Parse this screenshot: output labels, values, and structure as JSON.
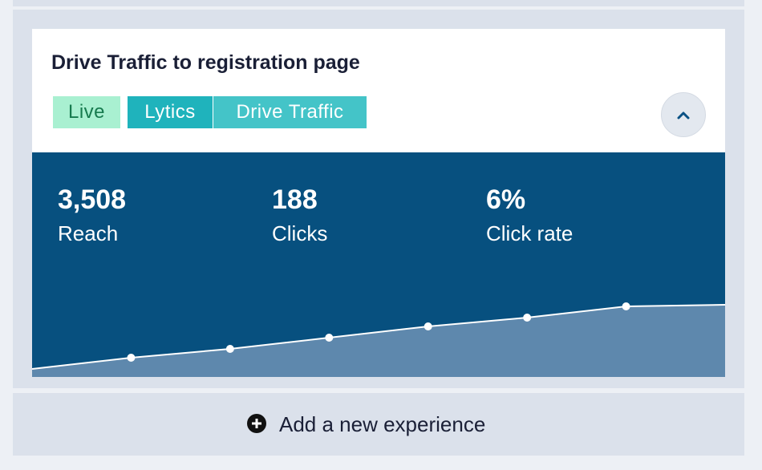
{
  "card": {
    "title": "Drive Traffic to registration page",
    "status": "Live",
    "tags": [
      "Lytics",
      "Drive Traffic"
    ],
    "stats": [
      {
        "value": "3,508",
        "label": "Reach"
      },
      {
        "value": "188",
        "label": "Clicks"
      },
      {
        "value": "6%",
        "label": "Click rate"
      }
    ],
    "sparkline": {
      "type": "area",
      "values": [
        10,
        24,
        35,
        49,
        63,
        74,
        88,
        90
      ],
      "ylim": [
        0,
        100
      ]
    }
  },
  "add_button": {
    "label": "Add a new experience"
  }
}
